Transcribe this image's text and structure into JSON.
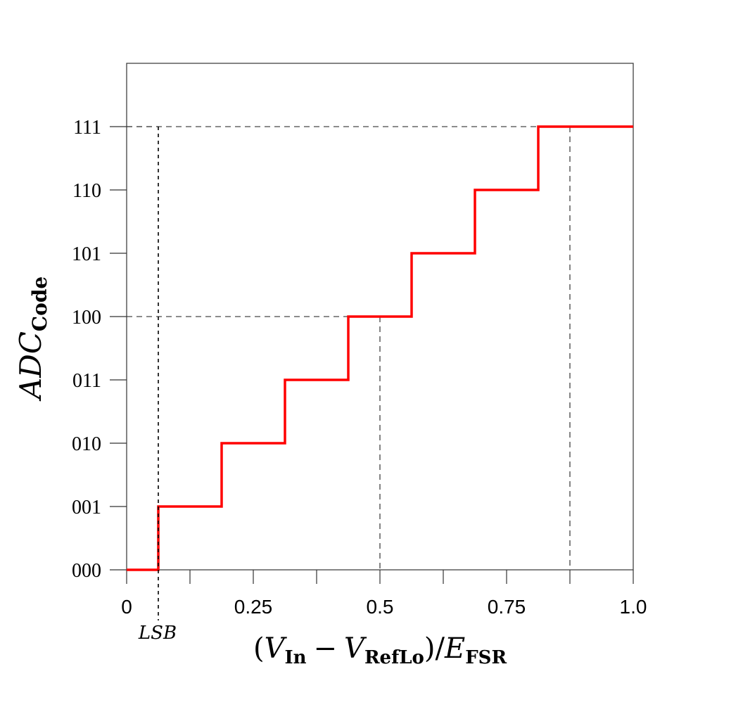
{
  "chart_data": {
    "type": "line",
    "step": true,
    "x": [
      0,
      0.0625,
      0.0625,
      0.1875,
      0.1875,
      0.3125,
      0.3125,
      0.4375,
      0.4375,
      0.5625,
      0.5625,
      0.6875,
      0.6875,
      0.8125,
      0.8125,
      1.0
    ],
    "y": [
      0,
      0,
      1,
      1,
      2,
      2,
      3,
      3,
      4,
      4,
      5,
      5,
      6,
      6,
      7,
      7
    ],
    "series_color": "#ff0000",
    "xlim": [
      0,
      1.0
    ],
    "ylim": [
      0,
      7
    ],
    "xticks": [
      0,
      0.125,
      0.25,
      0.375,
      0.5,
      0.625,
      0.75,
      0.875,
      1.0
    ],
    "xtick_labels": [
      {
        "value": 0,
        "label": "0"
      },
      {
        "value": 0.25,
        "label": "0.25"
      },
      {
        "value": 0.5,
        "label": "0.5"
      },
      {
        "value": 0.75,
        "label": "0.75"
      },
      {
        "value": 1.0,
        "label": "1.0"
      }
    ],
    "yticks": [
      {
        "value": 0,
        "label": "000"
      },
      {
        "value": 1,
        "label": "001"
      },
      {
        "value": 2,
        "label": "010"
      },
      {
        "value": 3,
        "label": "011"
      },
      {
        "value": 4,
        "label": "100"
      },
      {
        "value": 5,
        "label": "101"
      },
      {
        "value": 6,
        "label": "110"
      },
      {
        "value": 7,
        "label": "111"
      }
    ],
    "reference_lines": [
      {
        "x": 0.0625,
        "y": 7,
        "style": "dashed-black",
        "extends_below_axis": true
      },
      {
        "x": 0.5,
        "y": 4,
        "style": "dashed-gray"
      },
      {
        "x": 0.875,
        "y": 7,
        "style": "dashed-gray"
      }
    ],
    "annotation": "LSB",
    "xlabel": {
      "open": "(",
      "V1": "V",
      "sub1": "In",
      "minus": "−",
      "V2": "V",
      "sub2": "RefLo",
      "close": ")/",
      "E": "E",
      "sub3": "FSR"
    },
    "ylabel": {
      "main": "ADC",
      "sub": "Code"
    },
    "grid": false
  }
}
